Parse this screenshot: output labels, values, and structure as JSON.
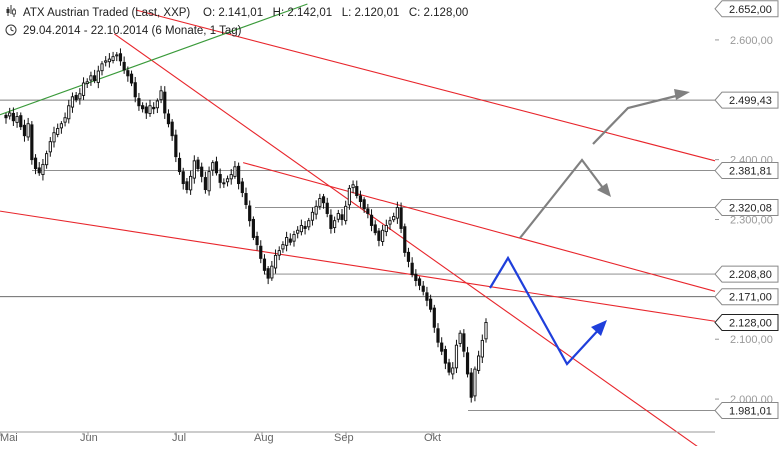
{
  "header": {
    "instrument": "ATX Austrian Traded (Last, XXP)",
    "ohlc": "O: 2.141,01   H: 2.142,01   L: 2.120,01   C: 2.128,00",
    "period": "29.04.2014 - 22.10.2014 (6 Monate, 1 Tag)"
  },
  "chart_data": {
    "type": "candlestick",
    "x_tick_labels": [
      "Mai",
      "Jun",
      "Jul",
      "Aug",
      "Sep",
      "Okt"
    ],
    "y_tick_labels": [
      {
        "value": 2600,
        "label": "2.600,00"
      },
      {
        "value": 2400,
        "label": "2.400,00"
      },
      {
        "value": 2300,
        "label": "2.300,00"
      },
      {
        "value": 2100,
        "label": "2.100,00"
      },
      {
        "value": 2000,
        "label": "2.000,00"
      }
    ],
    "ylim": [
      1945,
      2660
    ],
    "level_labels": [
      {
        "value": 2652.0,
        "label": "2.652,00",
        "line": false
      },
      {
        "value": 2499.43,
        "label": "2.499,43",
        "line": true
      },
      {
        "value": 2381.81,
        "label": "2.381,81",
        "line": true
      },
      {
        "value": 2320.08,
        "label": "2.320,08",
        "line": true
      },
      {
        "value": 2208.8,
        "label": "2.208,80",
        "line": true
      },
      {
        "value": 2171.0,
        "label": "2.171,00",
        "line": true
      },
      {
        "value": 2128.0,
        "label": "2.128,00",
        "line": false,
        "current": true
      },
      {
        "value": 1981.01,
        "label": "1.981,01",
        "line": true
      }
    ],
    "closes": [
      2470,
      2478,
      2465,
      2472,
      2455,
      2440,
      2460,
      2400,
      2385,
      2378,
      2392,
      2410,
      2430,
      2445,
      2452,
      2460,
      2470,
      2490,
      2505,
      2500,
      2510,
      2528,
      2530,
      2540,
      2532,
      2548,
      2560,
      2565,
      2568,
      2572,
      2575,
      2565,
      2550,
      2540,
      2528,
      2505,
      2490,
      2485,
      2478,
      2490,
      2485,
      2498,
      2515,
      2478,
      2460,
      2440,
      2405,
      2380,
      2360,
      2350,
      2372,
      2398,
      2385,
      2372,
      2350,
      2380,
      2395,
      2378,
      2362,
      2360,
      2368,
      2375,
      2388,
      2360,
      2345,
      2325,
      2298,
      2270,
      2258,
      2235,
      2215,
      2202,
      2222,
      2240,
      2248,
      2258,
      2270,
      2262,
      2275,
      2282,
      2290,
      2285,
      2298,
      2312,
      2322,
      2335,
      2328,
      2310,
      2285,
      2298,
      2310,
      2300,
      2322,
      2352,
      2358,
      2340,
      2330,
      2318,
      2310,
      2290,
      2278,
      2265,
      2282,
      2290,
      2298,
      2305,
      2320,
      2285,
      2245,
      2230,
      2208,
      2198,
      2190,
      2180,
      2165,
      2150,
      2120,
      2095,
      2080,
      2060,
      2045,
      2052,
      2090,
      2110,
      2080,
      2042,
      2003,
      2050,
      2072,
      2098,
      2128
    ],
    "channel_lines": [
      {
        "from": {
          "x": 0.34,
          "y": 2395
        },
        "to": {
          "x": 1.0,
          "y": 2180
        }
      },
      {
        "from": {
          "x": 0.0,
          "y": 2314
        },
        "to": {
          "x": 1.0,
          "y": 2130
        }
      },
      {
        "from": {
          "x": 0.16,
          "y": 2610
        },
        "to": {
          "x": 1.0,
          "y": 1900
        }
      },
      {
        "from": {
          "x": 0.19,
          "y": 2650
        },
        "to": {
          "x": 1.0,
          "y": 2398
        }
      }
    ],
    "trend_line": {
      "from": {
        "x": 0.0,
        "y": 2475
      },
      "to": {
        "x": 0.43,
        "y": 2660
      }
    },
    "colors": {
      "candle": "#111111",
      "channel": "#e8262c",
      "trend": "#3a9a3a",
      "level": "#7f7f7f",
      "scenario_bear": "#1f3fdb",
      "scenario_bull": "#808080"
    }
  }
}
